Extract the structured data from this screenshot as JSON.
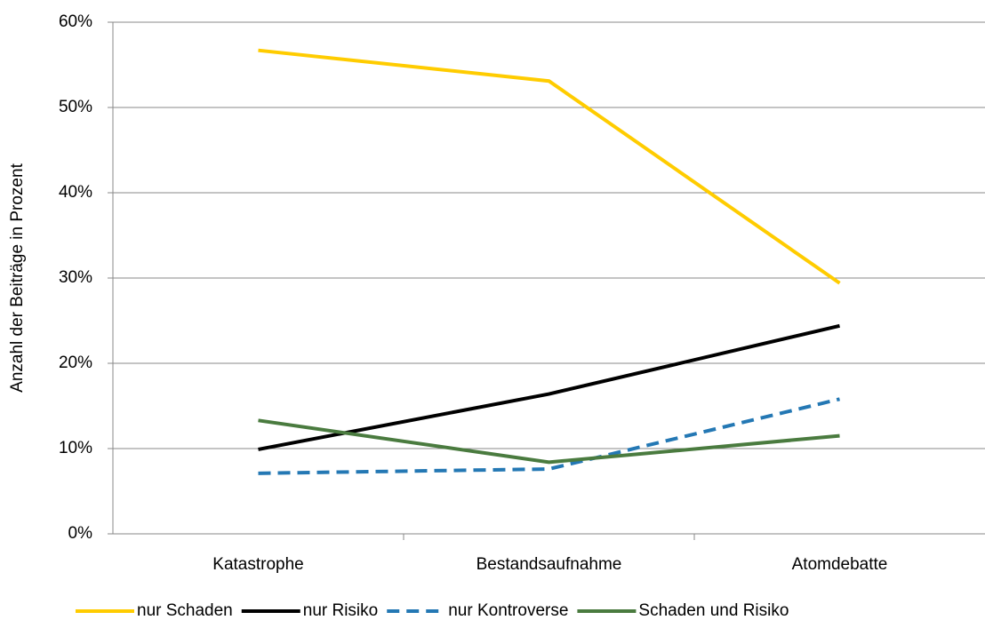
{
  "chart_data": {
    "type": "line",
    "y_label": "Anzahl der Beiträge in Prozent",
    "categories": [
      "Katastrophe",
      "Bestandsaufnahme",
      "Atomdebatte"
    ],
    "series": [
      {
        "name": "nur Schaden",
        "color": "#ffcc00",
        "dashed": false,
        "values": [
          56.7,
          53.1,
          29.4
        ]
      },
      {
        "name": "nur Risiko",
        "color": "#000000",
        "dashed": false,
        "values": [
          9.9,
          16.4,
          24.4
        ]
      },
      {
        "name": "nur Kontroverse",
        "color": "#2478b4",
        "dashed": true,
        "values": [
          7.1,
          7.6,
          15.8
        ]
      },
      {
        "name": "Schaden und Risiko",
        "color": "#4a7b3f",
        "dashed": false,
        "values": [
          13.3,
          8.4,
          11.5
        ]
      }
    ],
    "ylim": [
      0,
      60
    ],
    "yticks": [
      {
        "value": 0,
        "label": "0%"
      },
      {
        "value": 10,
        "label": "10%"
      },
      {
        "value": 20,
        "label": "20%"
      },
      {
        "value": 30,
        "label": "30%"
      },
      {
        "value": 40,
        "label": "40%"
      },
      {
        "value": 50,
        "label": "50%"
      },
      {
        "value": 60,
        "label": "60%"
      }
    ],
    "grid": true,
    "legend": "bottom"
  }
}
